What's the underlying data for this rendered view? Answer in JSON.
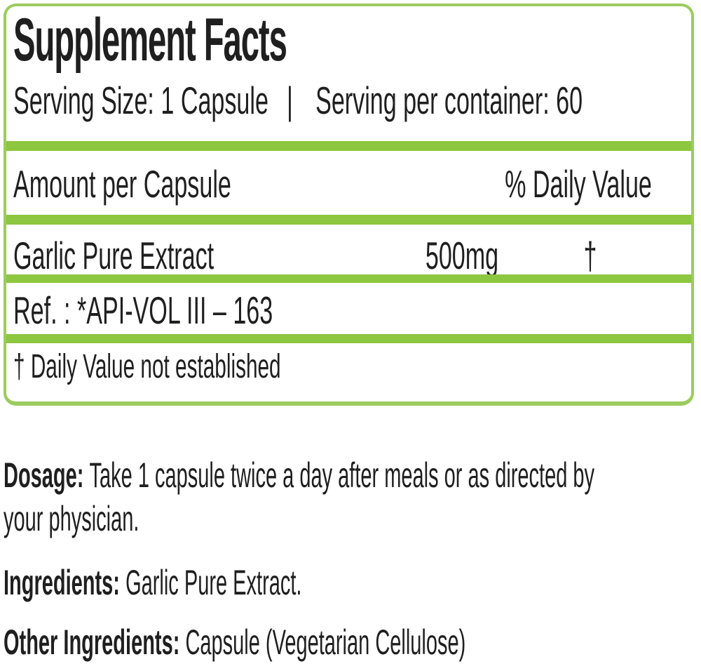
{
  "supplement_panel": {
    "title": "Supplement Facts",
    "serving_size": "Serving Size: 1 Capsule",
    "separator": "|",
    "servings_per_container": "Serving per container: 60",
    "columns": {
      "amount_header": "Amount per Capsule",
      "daily_value_header": "% Daily Value"
    },
    "ingredient_row": {
      "name": "Garlic Pure Extract",
      "amount": "500mg",
      "daily_value": "†"
    },
    "reference": "Ref. : *API-VOL III – 163",
    "footnote": "† Daily Value not established"
  },
  "details": {
    "dosage": {
      "label": "Dosage:",
      "line1": "Take 1 capsule twice a day after meals or as directed by",
      "line2": "your physician."
    },
    "ingredients": {
      "label": "Ingredients:",
      "text": "Garlic Pure Extract."
    },
    "other_ingredients": {
      "label": "Other Ingredients:",
      "text": "Capsule (Vegetarian Cellulose)"
    }
  },
  "colors": {
    "rule_green": "#8dc63f",
    "border_green": "#9ccb5e",
    "text": "#1f1f1f"
  }
}
